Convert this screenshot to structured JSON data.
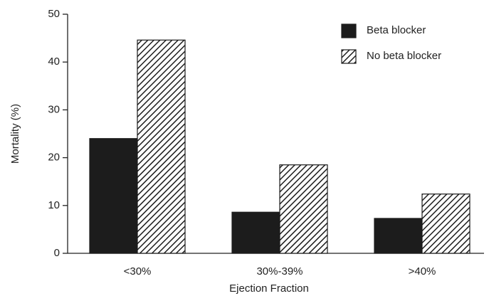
{
  "chart_data": {
    "type": "bar",
    "x_label": "Ejection Fraction",
    "y_label": "Mortality (%)",
    "categories": [
      "<30%",
      "30%-39%",
      ">40%"
    ],
    "series": [
      {
        "name": "Beta blocker",
        "color": "#1c1c1c",
        "pattern": "solid",
        "values": [
          24,
          8.6,
          7.3
        ]
      },
      {
        "name": "No beta blocker",
        "color": "#1c1c1c",
        "pattern": "hatch",
        "values": [
          44.6,
          18.5,
          12.4
        ]
      }
    ],
    "ylim": [
      0,
      50
    ],
    "yticks": [
      0,
      10,
      20,
      30,
      40,
      50
    ],
    "legend": "top-right",
    "grid": false
  }
}
